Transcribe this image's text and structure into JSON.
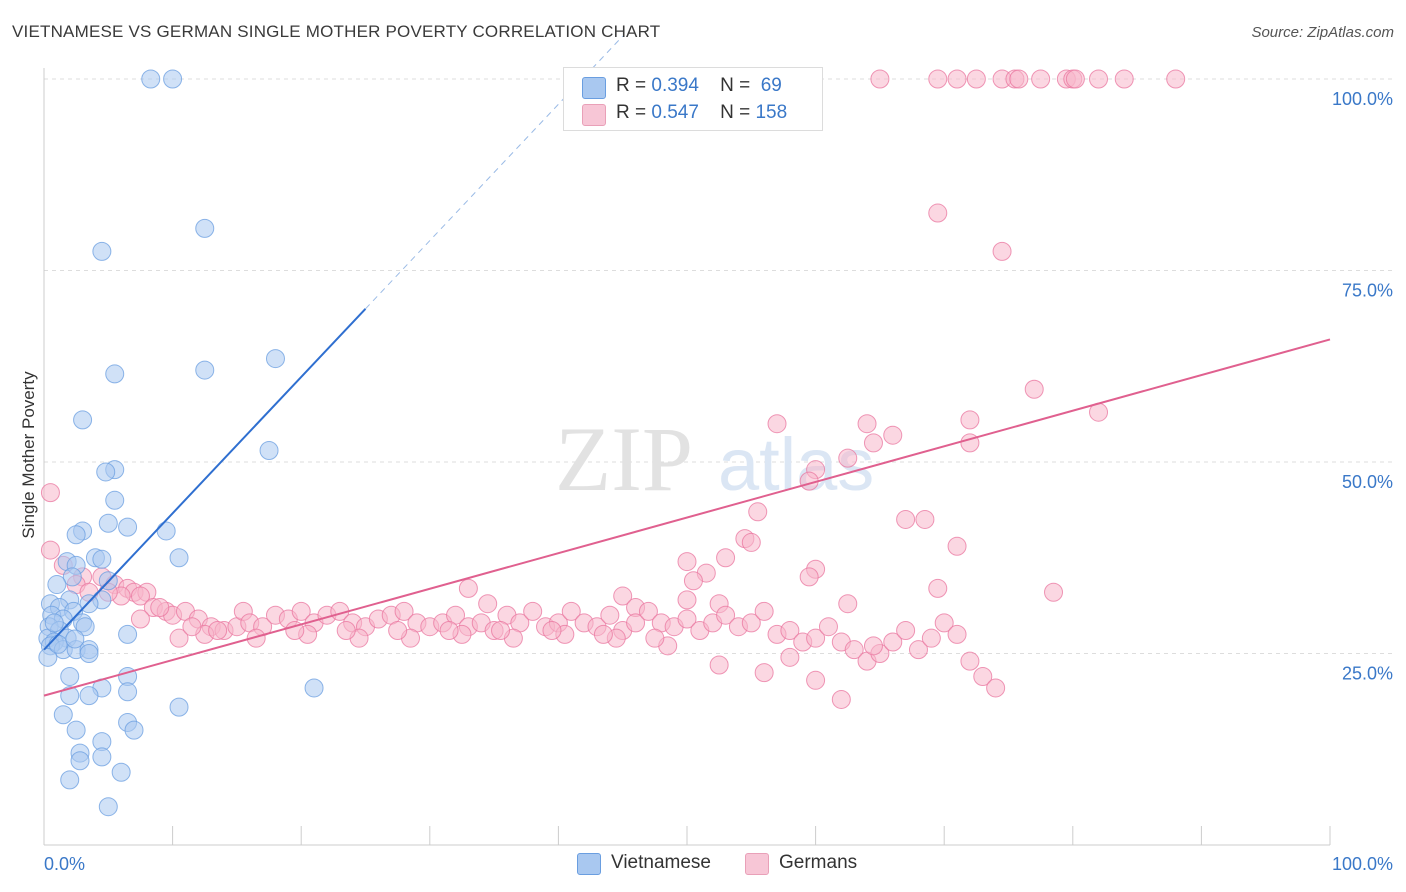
{
  "title": "VIETNAMESE VS GERMAN SINGLE MOTHER POVERTY CORRELATION CHART",
  "source": "Source: ZipAtlas.com",
  "watermark": {
    "zip": "ZIP",
    "atlas": "atlas"
  },
  "legend": [
    {
      "r_label": "R =",
      "r_value": "0.394",
      "n_label": "N =",
      "n_value": "69",
      "color": "#a9c8f0"
    },
    {
      "r_label": "R =",
      "r_value": "0.547",
      "n_label": "N =",
      "n_value": "158",
      "color": "#f7b7cb"
    }
  ],
  "bottom_legend": [
    {
      "label": "Vietnamese",
      "color": "#a9c8f0"
    },
    {
      "label": "Germans",
      "color": "#f7b7cb"
    }
  ],
  "chart_data": {
    "type": "scatter",
    "title": "VIETNAMESE VS GERMAN SINGLE MOTHER POVERTY CORRELATION CHART",
    "xlabel": "",
    "ylabel": "Single Mother Poverty",
    "xlim": [
      0,
      100
    ],
    "ylim": [
      0,
      100
    ],
    "x_ticks": [
      "0.0%",
      "100.0%"
    ],
    "y_ticks": [
      {
        "value": 25,
        "label": "25.0%"
      },
      {
        "value": 50,
        "label": "50.0%"
      },
      {
        "value": 75,
        "label": "75.0%"
      },
      {
        "value": 100,
        "label": "100.0%"
      }
    ],
    "grid": true,
    "legend_position": "top-center",
    "series": [
      {
        "name": "Vietnamese",
        "color": "#6a9ee0",
        "fill": "#a9c8f0",
        "trend": {
          "x1": 0,
          "y1": 25.5,
          "x2": 25,
          "y2": 70,
          "dash_to_x": 45
        },
        "points": [
          [
            8.3,
            100
          ],
          [
            10,
            100
          ],
          [
            12.5,
            80.5
          ],
          [
            4.5,
            77.5
          ],
          [
            18,
            63.5
          ],
          [
            12.5,
            62
          ],
          [
            5.5,
            61.5
          ],
          [
            3,
            55.5
          ],
          [
            17.5,
            51.5
          ],
          [
            5.5,
            49
          ],
          [
            4.8,
            48.7
          ],
          [
            5.5,
            45
          ],
          [
            5,
            42
          ],
          [
            6.5,
            41.5
          ],
          [
            3,
            41
          ],
          [
            2.5,
            40.5
          ],
          [
            9.5,
            41
          ],
          [
            10.5,
            37.5
          ],
          [
            1.8,
            37
          ],
          [
            2.5,
            36.5
          ],
          [
            4,
            37.5
          ],
          [
            4.5,
            37.3
          ],
          [
            2.2,
            35
          ],
          [
            5,
            34.5
          ],
          [
            1,
            34
          ],
          [
            4.5,
            32
          ],
          [
            3.5,
            31.5
          ],
          [
            2,
            32
          ],
          [
            0.5,
            31.5
          ],
          [
            1.2,
            31
          ],
          [
            2.3,
            30.5
          ],
          [
            0.6,
            30
          ],
          [
            1.5,
            29.5
          ],
          [
            3,
            29
          ],
          [
            0.4,
            28.5
          ],
          [
            1.2,
            28
          ],
          [
            6.5,
            27.5
          ],
          [
            0.3,
            27
          ],
          [
            1.8,
            27
          ],
          [
            0.8,
            26.5
          ],
          [
            0.5,
            26
          ],
          [
            1.5,
            25.5
          ],
          [
            2.5,
            25.5
          ],
          [
            3.5,
            25.5
          ],
          [
            3.5,
            25
          ],
          [
            0.3,
            24.5
          ],
          [
            2,
            22
          ],
          [
            6.5,
            22
          ],
          [
            21,
            20.5
          ],
          [
            4.5,
            20.5
          ],
          [
            6.5,
            20
          ],
          [
            2,
            19.5
          ],
          [
            3.5,
            19.5
          ],
          [
            10.5,
            18
          ],
          [
            1.5,
            17
          ],
          [
            6.5,
            16
          ],
          [
            7,
            15
          ],
          [
            2.5,
            15
          ],
          [
            4.5,
            13.5
          ],
          [
            2.8,
            12
          ],
          [
            4.5,
            11.5
          ],
          [
            2.8,
            11
          ],
          [
            6,
            9.5
          ],
          [
            2,
            8.5
          ],
          [
            5,
            5
          ],
          [
            0.8,
            29
          ],
          [
            1.1,
            26.2
          ],
          [
            3.2,
            28.5
          ],
          [
            2.4,
            26.9
          ]
        ]
      },
      {
        "name": "Germans",
        "color": "#e9769f",
        "fill": "#f7b7cb",
        "trend": {
          "x1": 0,
          "y1": 19.5,
          "x2": 100,
          "y2": 66
        },
        "points": [
          [
            65,
            100
          ],
          [
            69.5,
            100
          ],
          [
            71,
            100
          ],
          [
            72.5,
            100
          ],
          [
            74.5,
            100
          ],
          [
            75.5,
            100
          ],
          [
            75.8,
            100
          ],
          [
            77.5,
            100
          ],
          [
            79.5,
            100
          ],
          [
            80,
            100
          ],
          [
            80.2,
            100
          ],
          [
            82,
            100
          ],
          [
            84,
            100
          ],
          [
            88,
            100
          ],
          [
            69.5,
            82.5
          ],
          [
            74.5,
            77.5
          ],
          [
            77,
            59.5
          ],
          [
            82,
            56.5
          ],
          [
            57,
            55
          ],
          [
            64,
            55
          ],
          [
            72,
            55.5
          ],
          [
            66,
            53.5
          ],
          [
            64.5,
            52.5
          ],
          [
            72,
            52.5
          ],
          [
            62.5,
            50.5
          ],
          [
            60,
            49
          ],
          [
            59.5,
            47.5
          ],
          [
            55.5,
            43.5
          ],
          [
            67,
            42.5
          ],
          [
            68.5,
            42.5
          ],
          [
            54.5,
            40
          ],
          [
            55,
            39.5
          ],
          [
            71,
            39
          ],
          [
            53,
            37.5
          ],
          [
            50,
            37
          ],
          [
            51.5,
            35.5
          ],
          [
            60,
            36
          ],
          [
            59.5,
            35
          ],
          [
            50.5,
            34.5
          ],
          [
            69.5,
            33.5
          ],
          [
            78.5,
            33
          ],
          [
            33,
            33.5
          ],
          [
            34.5,
            31.5
          ],
          [
            50,
            32
          ],
          [
            52.5,
            31.5
          ],
          [
            62.5,
            31.5
          ],
          [
            45,
            32.5
          ],
          [
            46,
            31
          ],
          [
            0.5,
            46
          ],
          [
            0.5,
            38.5
          ],
          [
            1.5,
            36.5
          ],
          [
            3,
            35
          ],
          [
            4.5,
            35
          ],
          [
            5.5,
            34
          ],
          [
            6.5,
            33.5
          ],
          [
            7,
            33
          ],
          [
            8,
            33
          ],
          [
            6,
            32.5
          ],
          [
            2.5,
            34
          ],
          [
            3.5,
            33
          ],
          [
            5,
            33
          ],
          [
            7.5,
            32.5
          ],
          [
            8.5,
            31
          ],
          [
            9.5,
            30.5
          ],
          [
            10,
            30
          ],
          [
            11,
            30.5
          ],
          [
            12,
            29.5
          ],
          [
            13,
            28.5
          ],
          [
            14,
            28
          ],
          [
            15,
            28.5
          ],
          [
            15.5,
            30.5
          ],
          [
            16,
            29
          ],
          [
            17,
            28.5
          ],
          [
            18,
            30
          ],
          [
            19,
            29.5
          ],
          [
            20,
            30.5
          ],
          [
            21,
            29
          ],
          [
            22,
            30
          ],
          [
            23,
            30.5
          ],
          [
            24,
            29
          ],
          [
            25,
            28.5
          ],
          [
            26,
            29.5
          ],
          [
            27,
            30
          ],
          [
            28,
            30.5
          ],
          [
            29,
            29
          ],
          [
            30,
            28.5
          ],
          [
            31,
            29
          ],
          [
            32,
            30
          ],
          [
            33,
            28.5
          ],
          [
            34,
            29
          ],
          [
            35,
            28
          ],
          [
            36,
            30
          ],
          [
            37,
            29
          ],
          [
            38,
            30.5
          ],
          [
            39,
            28.5
          ],
          [
            40,
            29
          ],
          [
            41,
            30.5
          ],
          [
            42,
            29
          ],
          [
            43,
            28.5
          ],
          [
            44,
            30
          ],
          [
            45,
            28
          ],
          [
            46,
            29
          ],
          [
            47,
            30.5
          ],
          [
            48,
            29
          ],
          [
            49,
            28.5
          ],
          [
            50,
            29.5
          ],
          [
            51,
            28
          ],
          [
            52,
            29
          ],
          [
            53,
            30
          ],
          [
            54,
            28.5
          ],
          [
            55,
            29
          ],
          [
            56,
            30.5
          ],
          [
            57,
            27.5
          ],
          [
            58,
            28
          ],
          [
            59,
            26.5
          ],
          [
            60,
            27
          ],
          [
            61,
            28.5
          ],
          [
            62,
            26.5
          ],
          [
            63,
            25.5
          ],
          [
            64,
            24
          ],
          [
            65,
            25
          ],
          [
            66,
            26.5
          ],
          [
            67,
            28
          ],
          [
            68,
            25.5
          ],
          [
            69,
            27
          ],
          [
            70,
            29
          ],
          [
            71,
            27.5
          ],
          [
            72,
            24
          ],
          [
            73,
            22
          ],
          [
            74,
            20.5
          ],
          [
            56,
            22.5
          ],
          [
            58,
            24.5
          ],
          [
            60,
            21.5
          ],
          [
            62,
            19
          ],
          [
            64.5,
            26
          ],
          [
            10.5,
            27
          ],
          [
            12.5,
            27.5
          ],
          [
            16.5,
            27
          ],
          [
            20.5,
            27.5
          ],
          [
            24.5,
            27
          ],
          [
            28.5,
            27
          ],
          [
            32.5,
            27.5
          ],
          [
            36.5,
            27
          ],
          [
            40.5,
            27.5
          ],
          [
            44.5,
            27
          ],
          [
            48.5,
            26
          ],
          [
            52.5,
            23.5
          ],
          [
            7.5,
            29.5
          ],
          [
            9,
            31
          ],
          [
            11.5,
            28.5
          ],
          [
            13.5,
            28
          ],
          [
            19.5,
            28
          ],
          [
            23.5,
            28
          ],
          [
            27.5,
            28
          ],
          [
            31.5,
            28
          ],
          [
            35.5,
            28
          ],
          [
            39.5,
            28
          ],
          [
            43.5,
            27.5
          ],
          [
            47.5,
            27
          ]
        ]
      }
    ]
  }
}
